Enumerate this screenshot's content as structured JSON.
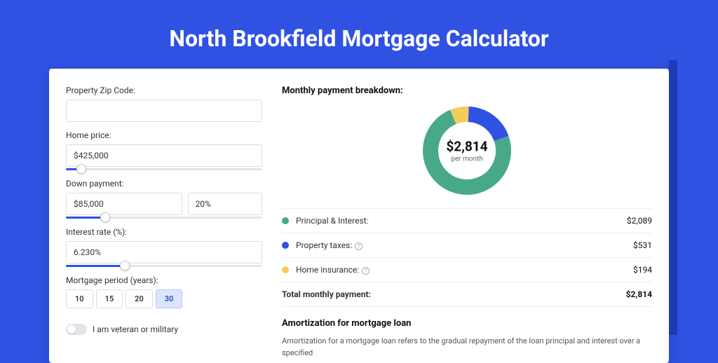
{
  "title": "North Brookfield Mortgage Calculator",
  "colors": {
    "bg": "#3052e3",
    "principal": "#48a98a",
    "taxes": "#3052e3",
    "insurance": "#f2cd5c"
  },
  "form": {
    "zip_label": "Property Zip Code:",
    "zip_value": "",
    "price_label": "Home price:",
    "price_value": "$425,000",
    "price_slider_pct": 8,
    "down_label": "Down payment:",
    "down_value": "$85,000",
    "down_pct": "20%",
    "down_slider_pct": 20,
    "rate_label": "Interest rate (%):",
    "rate_value": "6.230%",
    "rate_slider_pct": 30,
    "period_label": "Mortgage period (years):",
    "periods": [
      "10",
      "15",
      "20",
      "30"
    ],
    "period_active": "30",
    "veteran_label": "I am veteran or military"
  },
  "breakdown": {
    "title": "Monthly payment breakdown:",
    "total_value": "$2,814",
    "total_sub": "per month",
    "donut": {
      "principal_pct": 74.2,
      "taxes_pct": 18.9,
      "insurance_pct": 6.9,
      "stroke_width": 22
    },
    "rows": [
      {
        "name": "Principal & Interest:",
        "value": "$2,089",
        "color": "#48a98a",
        "info": false
      },
      {
        "name": "Property taxes:",
        "value": "$531",
        "color": "#3052e3",
        "info": true
      },
      {
        "name": "Home insurance:",
        "value": "$194",
        "color": "#f2cd5c",
        "info": true
      }
    ],
    "total_row": {
      "name": "Total monthly payment:",
      "value": "$2,814"
    }
  },
  "amort": {
    "title": "Amortization for mortgage loan",
    "text": "Amortization for a mortgage loan refers to the gradual repayment of the loan principal and interest over a specified"
  }
}
